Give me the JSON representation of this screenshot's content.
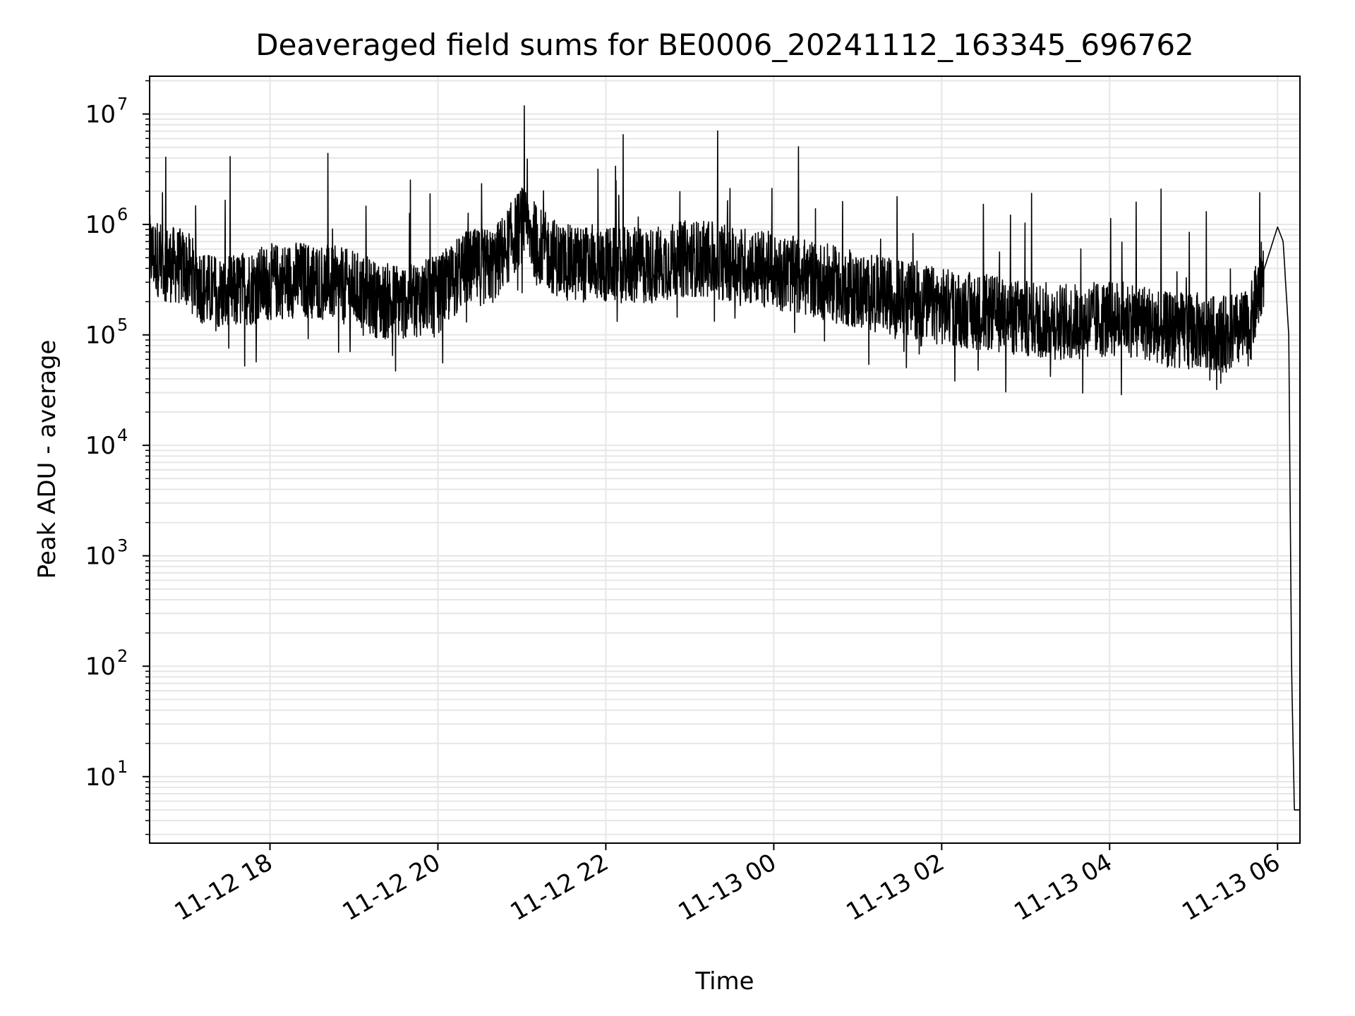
{
  "chart_data": {
    "type": "line",
    "title": "Deaveraged field sums for BE0006_20241112_163345_696762",
    "xlabel": "Time",
    "ylabel": "Peak ADU - average",
    "yscale": "log",
    "xlim": [
      "2024-11-12 16:34",
      "2024-11-13 06:16"
    ],
    "ylim": [
      2.5,
      22000000
    ],
    "grid": true,
    "line_color": "#000000",
    "x_ticks": [
      {
        "value": "2024-11-12 18:00",
        "label": "11-12 18"
      },
      {
        "value": "2024-11-12 20:00",
        "label": "11-12 20"
      },
      {
        "value": "2024-11-12 22:00",
        "label": "11-12 22"
      },
      {
        "value": "2024-11-13 00:00",
        "label": "11-13 00"
      },
      {
        "value": "2024-11-13 02:00",
        "label": "11-13 02"
      },
      {
        "value": "2024-11-13 04:00",
        "label": "11-13 04"
      },
      {
        "value": "2024-11-13 06:00",
        "label": "11-13 06"
      }
    ],
    "y_ticks": [
      {
        "value": 10,
        "base": "10",
        "exp": "1"
      },
      {
        "value": 100,
        "base": "10",
        "exp": "2"
      },
      {
        "value": 1000,
        "base": "10",
        "exp": "3"
      },
      {
        "value": 10000,
        "base": "10",
        "exp": "4"
      },
      {
        "value": 100000,
        "base": "10",
        "exp": "5"
      },
      {
        "value": 1000000,
        "base": "10",
        "exp": "6"
      },
      {
        "value": 10000000,
        "base": "10",
        "exp": "7"
      }
    ],
    "series": [
      {
        "x": [
          "2024-11-12 16:34",
          "2024-11-12 16:45",
          "2024-11-12 17:00",
          "2024-11-12 17:15",
          "2024-11-12 17:30",
          "2024-11-12 17:45",
          "2024-11-12 18:00",
          "2024-11-12 18:20",
          "2024-11-12 18:40",
          "2024-11-12 19:00",
          "2024-11-12 19:20",
          "2024-11-12 19:40",
          "2024-11-12 20:00",
          "2024-11-12 20:20",
          "2024-11-12 20:40",
          "2024-11-12 21:00",
          "2024-11-12 21:15",
          "2024-11-12 21:30",
          "2024-11-12 22:00",
          "2024-11-12 22:30",
          "2024-11-12 23:00",
          "2024-11-12 23:30",
          "2024-11-13 00:00",
          "2024-11-13 00:30",
          "2024-11-13 01:00",
          "2024-11-13 01:30",
          "2024-11-13 02:00",
          "2024-11-13 02:30",
          "2024-11-13 03:00",
          "2024-11-13 03:30",
          "2024-11-13 04:00",
          "2024-11-13 04:20",
          "2024-11-13 04:40",
          "2024-11-13 05:00",
          "2024-11-13 05:20",
          "2024-11-13 05:40",
          "2024-11-13 05:50",
          "2024-11-13 06:00",
          "2024-11-13 06:04",
          "2024-11-13 06:08",
          "2024-11-13 06:10",
          "2024-11-13 06:12",
          "2024-11-13 06:16"
        ],
        "y": [
          550000,
          450000,
          400000,
          250000,
          230000,
          270000,
          300000,
          320000,
          300000,
          260000,
          200000,
          210000,
          230000,
          400000,
          420000,
          1000000,
          600000,
          450000,
          430000,
          420000,
          500000,
          450000,
          380000,
          320000,
          250000,
          220000,
          180000,
          160000,
          140000,
          130000,
          140000,
          140000,
          110000,
          110000,
          100000,
          115000,
          380000,
          950000,
          700000,
          100000,
          100,
          5,
          5
        ]
      }
    ]
  }
}
